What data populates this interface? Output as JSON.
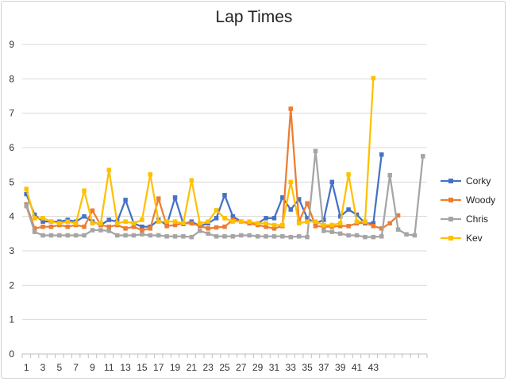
{
  "chart_data": {
    "type": "line",
    "title": "Lap Times",
    "xlabel": "",
    "ylabel": "",
    "ylim": [
      0,
      9
    ],
    "y_ticks": [
      0,
      1,
      2,
      3,
      4,
      5,
      6,
      7,
      8,
      9
    ],
    "x_tick_labels": [
      "1",
      "3",
      "5",
      "7",
      "9",
      "11",
      "13",
      "15",
      "17",
      "19",
      "21",
      "23",
      "25",
      "27",
      "29",
      "31",
      "33",
      "35",
      "37",
      "39",
      "41",
      "43"
    ],
    "x_count": 49,
    "grid": "horizontal",
    "legend_position": "right",
    "series": [
      {
        "name": "Corky",
        "color": "#4472C4",
        "marker": "square",
        "values": [
          4.65,
          4.05,
          3.85,
          3.85,
          3.85,
          3.9,
          3.85,
          4.0,
          3.85,
          3.75,
          3.9,
          3.85,
          4.48,
          3.8,
          3.7,
          3.7,
          3.9,
          3.75,
          4.55,
          3.78,
          3.85,
          3.72,
          3.8,
          3.95,
          4.62,
          4.0,
          3.85,
          3.8,
          3.8,
          3.95,
          3.95,
          4.55,
          4.2,
          4.5,
          3.95,
          3.8,
          3.9,
          5.0,
          4.0,
          4.2,
          4.05,
          3.8,
          3.8,
          5.8
        ]
      },
      {
        "name": "Woody",
        "color": "#ED7D31",
        "marker": "square",
        "values": [
          4.35,
          3.65,
          3.7,
          3.7,
          3.75,
          3.7,
          3.75,
          3.7,
          4.17,
          3.75,
          3.7,
          3.75,
          3.65,
          3.7,
          3.6,
          3.65,
          4.52,
          3.72,
          3.75,
          3.8,
          3.8,
          3.72,
          3.65,
          3.68,
          3.7,
          3.9,
          3.85,
          3.8,
          3.75,
          3.7,
          3.65,
          3.72,
          7.13,
          3.85,
          4.38,
          3.72,
          3.7,
          3.7,
          3.72,
          3.72,
          3.8,
          3.82,
          3.72,
          3.65,
          3.8,
          4.03
        ]
      },
      {
        "name": "Chris",
        "color": "#A5A5A5",
        "marker": "square",
        "values": [
          4.3,
          3.55,
          3.45,
          3.45,
          3.45,
          3.45,
          3.45,
          3.45,
          3.6,
          3.6,
          3.58,
          3.45,
          3.45,
          3.45,
          3.48,
          3.45,
          3.45,
          3.42,
          3.42,
          3.42,
          3.4,
          3.58,
          3.5,
          3.42,
          3.42,
          3.42,
          3.45,
          3.45,
          3.42,
          3.42,
          3.42,
          3.42,
          3.4,
          3.42,
          3.4,
          5.9,
          3.58,
          3.55,
          3.5,
          3.45,
          3.45,
          3.4,
          3.4,
          3.42,
          5.2,
          3.62,
          3.48,
          3.45,
          5.75
        ]
      },
      {
        "name": "Kev",
        "color": "#FFC000",
        "marker": "square",
        "values": [
          4.8,
          3.95,
          3.95,
          3.85,
          3.8,
          3.85,
          3.8,
          4.75,
          3.8,
          3.8,
          5.35,
          3.8,
          3.85,
          3.8,
          3.9,
          5.22,
          3.85,
          3.85,
          3.85,
          3.8,
          5.05,
          3.8,
          3.85,
          4.18,
          3.95,
          3.85,
          3.85,
          3.85,
          3.8,
          3.8,
          3.75,
          3.75,
          5.0,
          3.8,
          3.85,
          3.85,
          3.75,
          3.75,
          3.8,
          5.22,
          3.85,
          3.85,
          8.02
        ]
      }
    ]
  }
}
